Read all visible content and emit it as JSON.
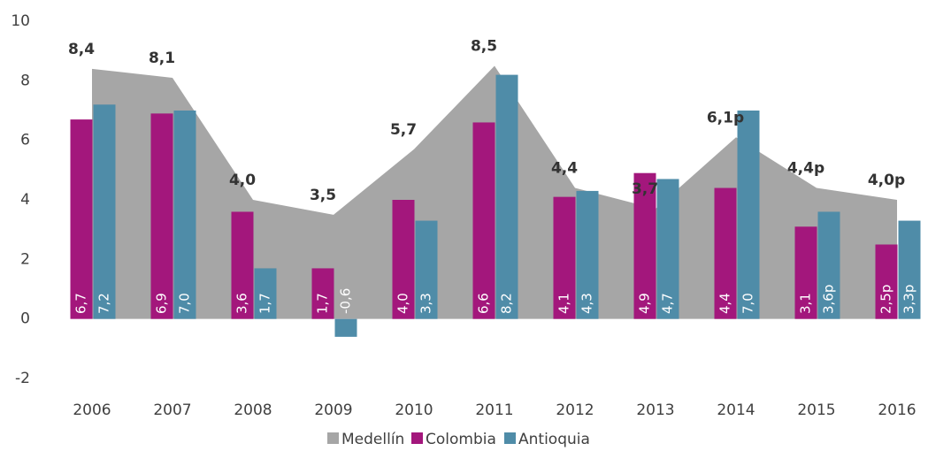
{
  "chart_data": {
    "type": "bar_area",
    "categories": [
      "2006",
      "2007",
      "2008",
      "2009",
      "2010",
      "2011",
      "2012",
      "2013",
      "2014",
      "2015",
      "2016"
    ],
    "series": [
      {
        "name": "Medellín",
        "color": "#a6a6a6",
        "kind": "area",
        "values": [
          8.4,
          8.1,
          4.0,
          3.5,
          5.7,
          8.5,
          4.4,
          3.7,
          6.1,
          4.4,
          4.0
        ],
        "value_labels": [
          "8,4",
          "8,1",
          "4,0",
          "3,5",
          "5,7",
          "8,5",
          "4,4",
          "3,7",
          "6,1p",
          "4,4p",
          "4,0p"
        ]
      },
      {
        "name": "Colombia",
        "color": "#a3177c",
        "kind": "bar",
        "values": [
          6.7,
          6.9,
          3.6,
          1.7,
          4.0,
          6.6,
          4.1,
          4.9,
          4.4,
          3.1,
          2.5
        ],
        "value_labels": [
          "6,7",
          "6,9",
          "3,6",
          "1,7",
          "4,0",
          "6,6",
          "4,1",
          "4,9",
          "4,4",
          "3,1",
          "2,5p"
        ]
      },
      {
        "name": "Antioquia",
        "color": "#4f8ca8",
        "kind": "bar",
        "values": [
          7.2,
          7.0,
          1.7,
          -0.6,
          3.3,
          8.2,
          4.3,
          4.7,
          7.0,
          3.6,
          3.3
        ],
        "value_labels": [
          "7,2",
          "7,0",
          "1,7",
          "-0,6",
          "3,3",
          "8,2",
          "4,3",
          "4,7",
          "7,0",
          "3,6p",
          "3,3p"
        ]
      }
    ],
    "ylim": [
      -2,
      10
    ],
    "yticks": [
      -2,
      0,
      2,
      4,
      6,
      8,
      10
    ],
    "legend": "bottom"
  }
}
